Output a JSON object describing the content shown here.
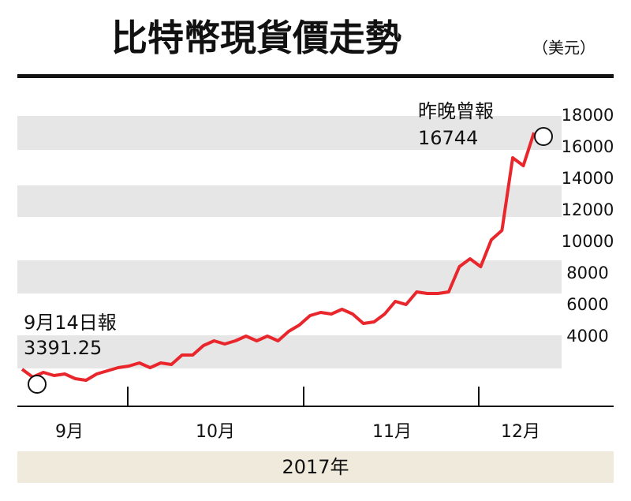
{
  "chart_data": {
    "type": "line",
    "title": "比特幣現貨價走勢",
    "unit": "（美元）",
    "annotations": [
      {
        "label": "9月14日報",
        "value_text": "3391.25"
      },
      {
        "label": "昨晚曾報",
        "value_text": "16744"
      }
    ],
    "months": [
      "9月",
      "10月",
      "11月",
      "12月"
    ],
    "xlabel": "2017年",
    "series": [
      {
        "name": "比特幣",
        "color": "#e8262b",
        "values": [
          1950,
          1450,
          1750,
          1550,
          1650,
          1350,
          1250,
          1650,
          1850,
          2050,
          2150,
          2350,
          2050,
          2350,
          2250,
          2850,
          2850,
          3450,
          3750,
          3550,
          3750,
          4050,
          3750,
          4050,
          3750,
          4350,
          4750,
          5350,
          5550,
          5450,
          5750,
          5450,
          4850,
          4950,
          5450,
          6250,
          6050,
          6850,
          6750,
          6750,
          6850,
          8450,
          8950,
          8450,
          10150,
          10750,
          15350,
          14850,
          16950
        ]
      }
    ],
    "ylim": [
      -400,
      20100
    ],
    "yticks": [
      4000,
      6000,
      8000,
      10000,
      12000,
      14000,
      16000,
      18000
    ]
  }
}
